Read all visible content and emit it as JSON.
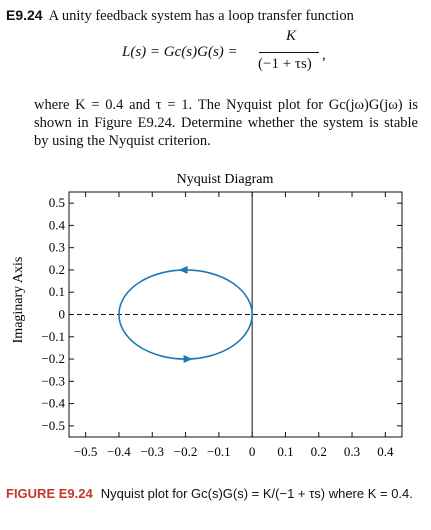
{
  "problem": {
    "number": "E9.24",
    "intro": "A unity feedback system has a loop transfer function",
    "equation": {
      "lhs": "L(s) = Gc(s)G(s) =",
      "numerator": "K",
      "denominator": "(−1 + τs)",
      "trail": ","
    },
    "body": "where K = 0.4 and τ = 1. The Nyquist plot for Gc(jω)G(jω) is shown in Figure E9.24. Determine whether the system is stable by using the Nyquist criterion."
  },
  "figure": {
    "label": "FIGURE E9.24",
    "caption": "Nyquist plot for Gc(s)G(s) = K/(−1 + τs) where K = 0.4."
  },
  "chart_data": {
    "type": "line",
    "title": "Nyquist Diagram",
    "xlabel": "",
    "ylabel": "Imaginary Axis",
    "xlim": [
      -0.55,
      0.45
    ],
    "ylim": [
      -0.55,
      0.55
    ],
    "xticks": [
      "−0.5",
      "−0.4",
      "−0.3",
      "−0.2",
      "−0.1",
      "0",
      "0.1",
      "0.2",
      "0.3",
      "0.4"
    ],
    "xtick_values": [
      -0.5,
      -0.4,
      -0.3,
      -0.2,
      -0.1,
      0,
      0.1,
      0.2,
      0.3,
      0.4
    ],
    "yticks": [
      "0.5",
      "0.4",
      "0.3",
      "0.2",
      "0.1",
      "0",
      "−0.1",
      "−0.2",
      "−0.3",
      "−0.4",
      "−0.5"
    ],
    "ytick_values": [
      0.5,
      0.4,
      0.3,
      0.2,
      0.1,
      0,
      -0.1,
      -0.2,
      -0.3,
      -0.4,
      -0.5
    ],
    "grid": false,
    "series": [
      {
        "shape": "circle",
        "center": [
          -0.2,
          0
        ],
        "radius": 0.2,
        "direction": "clockwise",
        "color": "#1f77b4"
      }
    ],
    "reference_lines": {
      "zero_real_axis": "dashed",
      "zero_imag_axis": "solid"
    }
  }
}
